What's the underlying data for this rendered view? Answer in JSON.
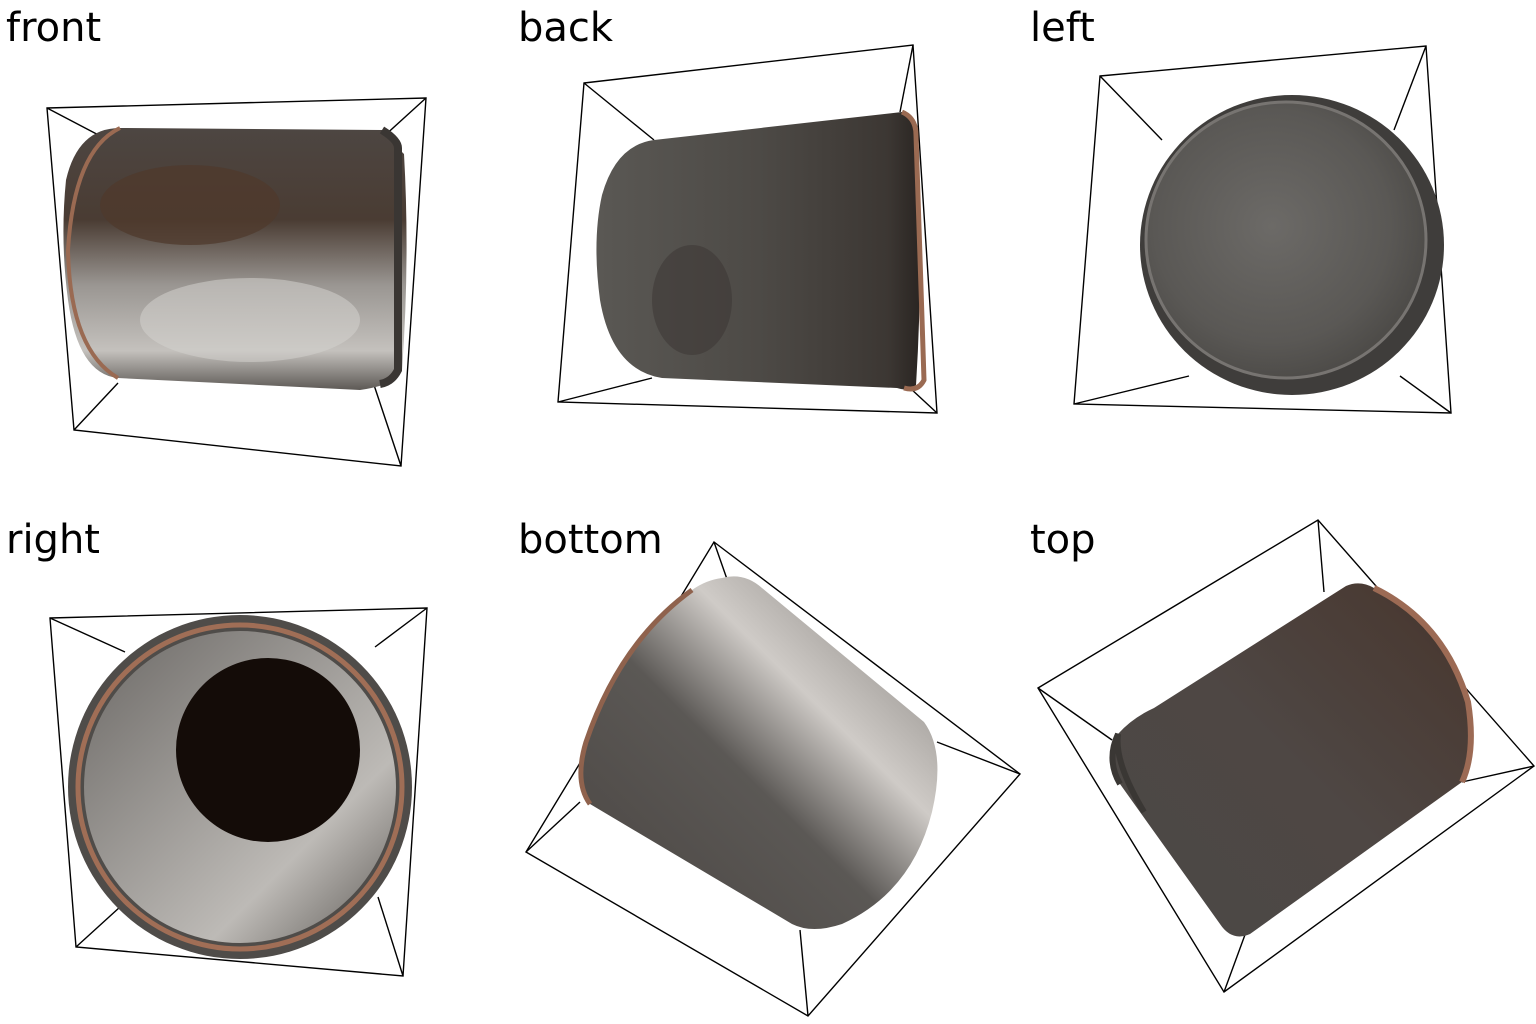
{
  "views": [
    {
      "label": "front"
    },
    {
      "label": "back"
    },
    {
      "label": "left"
    },
    {
      "label": "right"
    },
    {
      "label": "bottom"
    },
    {
      "label": "top"
    }
  ],
  "colors": {
    "background": "#ffffff",
    "bounding_box": "#000000",
    "object_gray": "#55534f",
    "object_shadow": "#2e2a27",
    "rust": "#9a6a52",
    "scratched_highlight": "#c9c6c2",
    "interior_void": "#140c08"
  }
}
